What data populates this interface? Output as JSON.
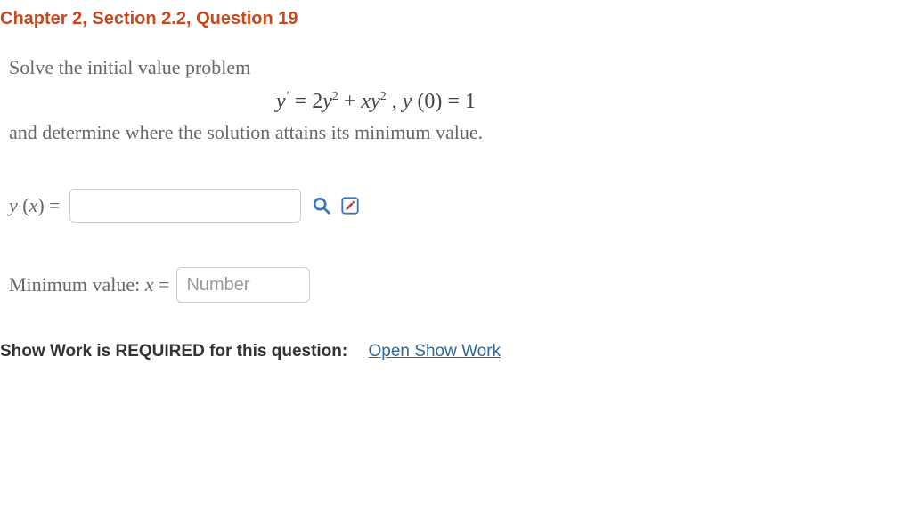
{
  "header": {
    "title": "Chapter 2, Section 2.2, Question 19"
  },
  "problem": {
    "prompt": "Solve the initial value problem",
    "equation_html": "<span class='var'>y</span><span class='prime'>′</span> = 2<span class='var'>y</span><sup>2</sup> + <span class='var'>xy</span><sup>2</sup> , <span class='var'>y</span> (0) = 1",
    "follow": "and determine where the solution attains its minimum value."
  },
  "answers": {
    "yx_label_html": "<span class='var'>y</span> (<span class='var'>x</span>) =",
    "yx_value": "",
    "min_label_html": "Minimum value: <span class='var'>x</span> =",
    "min_placeholder": "Number",
    "min_value": ""
  },
  "icons": {
    "preview": "search-icon",
    "edit": "edit-icon"
  },
  "footer": {
    "show_work_label": "Show Work is REQUIRED for this question:",
    "show_work_link": "Open Show Work"
  },
  "colors": {
    "title": "#c8481b",
    "body_text": "#666666",
    "equation_text": "#444444",
    "link": "#336699",
    "icon_blue": "#3a74c4",
    "icon_red": "#c33b3b",
    "input_border": "#cccccc",
    "placeholder": "#999999"
  }
}
